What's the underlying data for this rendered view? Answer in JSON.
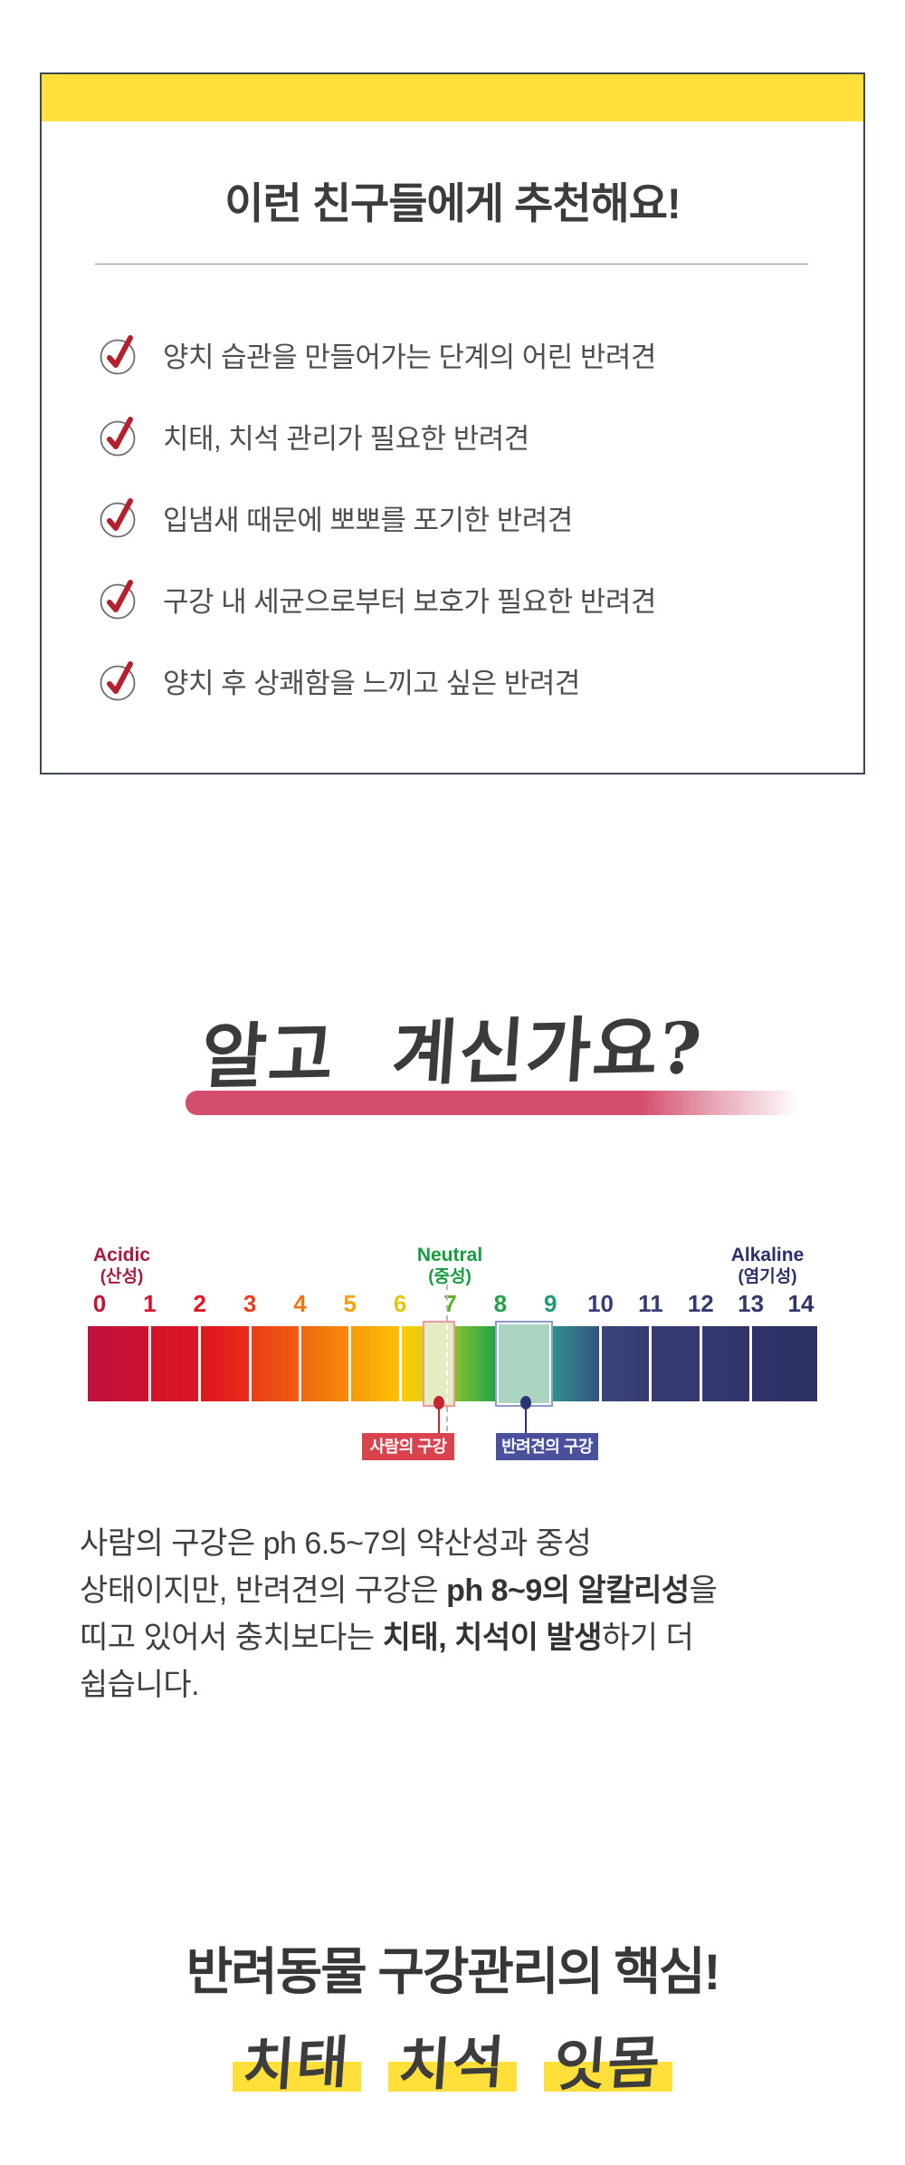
{
  "palette": {
    "accent_yellow": "#ffe03a",
    "card_border": "#3e4553",
    "check_red": "#b5202f",
    "pink_underline": "#d44d6e",
    "human_tag": "#d8434e",
    "dog_tag": "#4a509b",
    "dot_red": "#c32532",
    "dot_navy": "#2d3374"
  },
  "recommend_card": {
    "title": "이런 친구들에게 추천해요!",
    "items": [
      "양치 습관을 만들어가는 단계의 어린 반려견",
      "치태, 치석 관리가 필요한 반려견",
      "입냄새 때문에 뽀뽀를 포기한 반려견",
      "구강 내 세균으로부터 보호가 필요한 반려견",
      "양치 후 상쾌함을 느끼고 싶은 반려견"
    ]
  },
  "did_you_know": {
    "heading": "알고 계신가요?"
  },
  "chart_data": {
    "type": "heatmap",
    "title": "pH scale of oral cavity",
    "x_range": [
      0,
      14
    ],
    "ticks": [
      {
        "value": "0",
        "color": "#c31337"
      },
      {
        "value": "1",
        "color": "#d4142c"
      },
      {
        "value": "2",
        "color": "#e01622"
      },
      {
        "value": "3",
        "color": "#ee3a1a"
      },
      {
        "value": "4",
        "color": "#f37414"
      },
      {
        "value": "5",
        "color": "#f89d0b"
      },
      {
        "value": "6",
        "color": "#e3c70e"
      },
      {
        "value": "7",
        "color": "#64b02a"
      },
      {
        "value": "8",
        "color": "#23a04c"
      },
      {
        "value": "9",
        "color": "#23997d"
      },
      {
        "value": "10",
        "color": "#363c77"
      },
      {
        "value": "11",
        "color": "#353b73"
      },
      {
        "value": "12",
        "color": "#33386f"
      },
      {
        "value": "13",
        "color": "#31356b"
      },
      {
        "value": "14",
        "color": "#2f3367"
      }
    ],
    "zones": [
      {
        "label": "Acidic",
        "sub": "(산성)",
        "color": "#a81a3e",
        "position": 0
      },
      {
        "label": "Neutral",
        "sub": "(중성)",
        "color": "#169c3e",
        "position": 7
      },
      {
        "label": "Alkaline",
        "sub": "(염기성)",
        "color": "#2c2f6b",
        "position": 14
      }
    ],
    "segments": [
      [
        "#c0113d",
        "#cd122f"
      ],
      [
        "#d01329",
        "#dc1526"
      ],
      [
        "#de161f",
        "#e92a1b"
      ],
      [
        "#ea3b18",
        "#f05c13"
      ],
      [
        "#f0670f",
        "#f58c0c"
      ],
      [
        "#f6990a",
        "#fbc004"
      ],
      [
        "#fcca02",
        "#c8d21d"
      ],
      [
        "#8ec32c",
        "#1ba04b"
      ],
      [
        "#25a155",
        "#259d7b"
      ],
      [
        "#2e938d",
        "#35527f"
      ],
      [
        "#394678",
        "#363c72"
      ],
      [
        "#353b72",
        "#333870"
      ],
      [
        "#33386f",
        "#31356c"
      ],
      [
        "#303369",
        "#2e3166"
      ]
    ],
    "markers": [
      {
        "label": "사람의 구강",
        "range": [
          6.5,
          7
        ],
        "color": "#d8434e"
      },
      {
        "label": "반려견의 구강",
        "range": [
          8,
          9
        ],
        "color": "#4a509b"
      }
    ]
  },
  "description": {
    "lines": [
      [
        {
          "t": "사람의 구강은 ph 6.5~7의 약산성과 중성",
          "b": false
        }
      ],
      [
        {
          "t": "상태이지만, 반려견의 구강은 ",
          "b": false
        },
        {
          "t": "ph 8~9의 알칼리성",
          "b": true
        },
        {
          "t": "을",
          "b": false
        }
      ],
      [
        {
          "t": "띠고 있어서 충치보다는 ",
          "b": false
        },
        {
          "t": "치태, 치석이 발생",
          "b": true
        },
        {
          "t": "하기 더",
          "b": false
        }
      ],
      [
        {
          "t": "쉽습니다.",
          "b": false
        }
      ]
    ]
  },
  "core_section": {
    "title": "반려동물 구강관리의 핵심!",
    "keywords": [
      "치태",
      "치석",
      "잇몸"
    ]
  }
}
